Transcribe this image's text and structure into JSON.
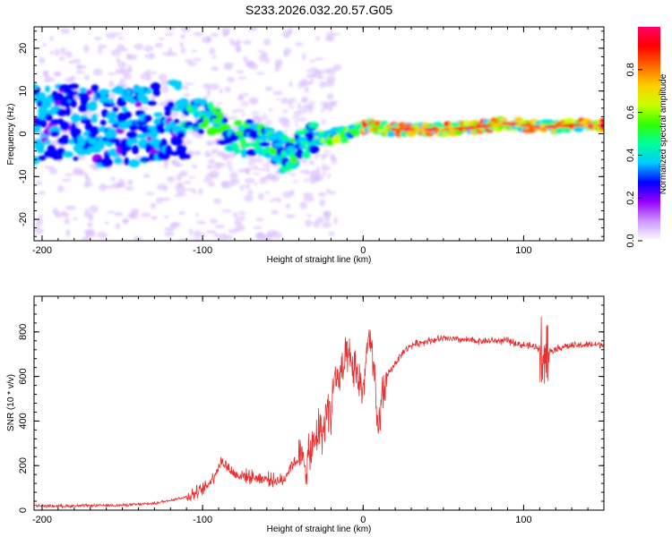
{
  "figure": {
    "title": "S233.2026.032.20.57.G05"
  },
  "chart_data": [
    {
      "type": "heatmap",
      "name": "spectrogram",
      "xlabel": "Height of straight line (km)",
      "ylabel": "Frequency (Hz)",
      "xlim": [
        -205,
        150
      ],
      "ylim": [
        -25,
        25
      ],
      "xticks": [
        -200,
        -100,
        0,
        100
      ],
      "xtick_labels": [
        "-200",
        "-100",
        "0",
        "100"
      ],
      "yticks": [
        -20,
        -10,
        0,
        10,
        20
      ],
      "ytick_labels": [
        "-20",
        "-10",
        "0",
        "10",
        "20"
      ],
      "colorbar": {
        "label": "Normalized spectral amplitude",
        "range": [
          0,
          1
        ],
        "ticks": [
          0.0,
          0.2,
          0.4,
          0.6,
          0.8
        ],
        "tick_labels": [
          "0.0",
          "0.2",
          "0.4",
          "0.6",
          "0.8"
        ],
        "colormap": [
          "#ffffff",
          "#cc99ff",
          "#9900ff",
          "#0000ff",
          "#00ccff",
          "#00ff99",
          "#33ff00",
          "#ccff00",
          "#ffcc00",
          "#ff6600",
          "#ff0000",
          "#ff0066"
        ]
      },
      "ridge": {
        "x": [
          -205,
          -190,
          -175,
          -160,
          -145,
          -130,
          -115,
          -100,
          -90,
          -80,
          -70,
          -60,
          -50,
          -42,
          -35,
          -25,
          -15,
          -5,
          0,
          5,
          15,
          30,
          50,
          70,
          90,
          100,
          110,
          130,
          150
        ],
        "freq": [
          2.5,
          2.5,
          2.0,
          1.5,
          1.5,
          2.5,
          3.5,
          4.0,
          2.0,
          0.0,
          -1.0,
          -2.0,
          -5.0,
          -3.5,
          -2.0,
          -1.0,
          -0.5,
          0.5,
          1.5,
          2.0,
          1.0,
          1.0,
          1.0,
          1.5,
          2.5,
          2.0,
          1.5,
          2.0,
          2.0
        ]
      }
    },
    {
      "type": "line",
      "name": "snr",
      "xlabel": "Height of straight line (km)",
      "ylabel": "SNR (10 * v/v)",
      "xlim": [
        -205,
        150
      ],
      "ylim": [
        0,
        960
      ],
      "xticks": [
        -200,
        -100,
        0,
        100
      ],
      "xtick_labels": [
        "-200",
        "-100",
        "0",
        "100"
      ],
      "yticks": [
        0,
        200,
        400,
        600,
        800
      ],
      "ytick_labels": [
        "0",
        "200",
        "400",
        "600",
        "800"
      ],
      "color": "#e83030",
      "series": [
        {
          "name": "SNR",
          "x": [
            -205,
            -190,
            -170,
            -150,
            -130,
            -120,
            -110,
            -100,
            -95,
            -88,
            -80,
            -70,
            -60,
            -50,
            -45,
            -40,
            -35,
            -30,
            -27,
            -25,
            -22,
            -20,
            -18,
            -15,
            -10,
            -5,
            0,
            3,
            6,
            9,
            12,
            15,
            20,
            25,
            30,
            40,
            50,
            60,
            70,
            80,
            90,
            100,
            110,
            113,
            118,
            125,
            135,
            150
          ],
          "values": [
            20,
            18,
            20,
            22,
            30,
            45,
            60,
            90,
            130,
            220,
            160,
            150,
            140,
            130,
            200,
            230,
            210,
            300,
            380,
            340,
            480,
            420,
            600,
            580,
            680,
            620,
            540,
            760,
            700,
            340,
            520,
            600,
            660,
            710,
            740,
            760,
            770,
            765,
            760,
            760,
            760,
            740,
            730,
            700,
            720,
            735,
            740,
            745
          ]
        }
      ],
      "annotations": []
    }
  ]
}
